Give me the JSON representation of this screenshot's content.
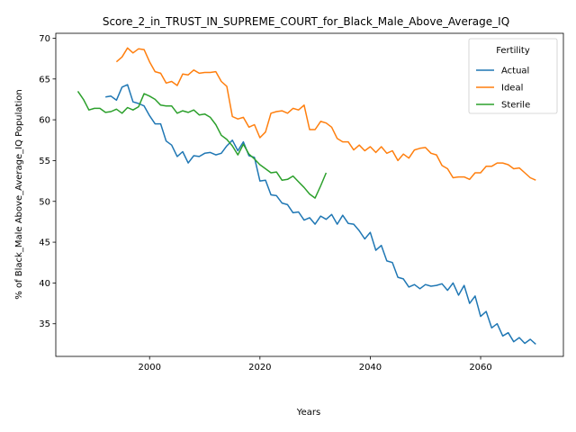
{
  "chart_data": {
    "type": "line",
    "title": "Score_2_in_TRUST_IN_SUPREME_COURT_for_Black_Male_Above_Average_IQ",
    "xlabel": "Years",
    "ylabel": "% of Black_Male Above_Average_IQ Population",
    "xlim": [
      1983,
      2075
    ],
    "ylim": [
      31,
      70.6
    ],
    "xticks": [
      2000,
      2020,
      2040,
      2060
    ],
    "yticks": [
      35,
      40,
      45,
      50,
      55,
      60,
      65,
      70
    ],
    "grid": false,
    "legend": {
      "title": "Fertility",
      "placement": "top-right"
    },
    "series": [
      {
        "name": "Actual",
        "color": "#1f77b4",
        "x": [
          1992,
          1993,
          1994,
          1995,
          1996,
          1997,
          1998,
          1999,
          2000,
          2001,
          2002,
          2003,
          2004,
          2005,
          2006,
          2007,
          2008,
          2009,
          2010,
          2011,
          2012,
          2013,
          2014,
          2015,
          2016,
          2017,
          2018,
          2019,
          2020,
          2021,
          2022,
          2023,
          2024,
          2025,
          2026,
          2027,
          2028,
          2029,
          2030,
          2031,
          2032,
          2033,
          2034,
          2035,
          2036,
          2037,
          2038,
          2039,
          2040,
          2041,
          2042,
          2043,
          2044,
          2045,
          2046,
          2047,
          2048,
          2049,
          2050,
          2051,
          2052,
          2053,
          2054,
          2055,
          2056,
          2057,
          2058,
          2059,
          2060,
          2061,
          2062,
          2063,
          2064,
          2065,
          2066,
          2067,
          2068,
          2069,
          2070
        ],
        "values": [
          62.8,
          62.9,
          62.4,
          64.0,
          64.3,
          62.2,
          62.0,
          61.7,
          60.5,
          59.5,
          59.5,
          57.4,
          56.9,
          55.5,
          56.1,
          54.7,
          55.6,
          55.5,
          55.9,
          56.0,
          55.7,
          55.9,
          56.8,
          57.5,
          56.2,
          57.3,
          55.6,
          55.4,
          52.5,
          52.6,
          50.8,
          50.7,
          49.8,
          49.6,
          48.6,
          48.7,
          47.7,
          48.0,
          47.2,
          48.2,
          47.8,
          48.4,
          47.2,
          48.3,
          47.3,
          47.2,
          46.4,
          45.4,
          46.2,
          44.0,
          44.6,
          42.7,
          42.5,
          40.7,
          40.5,
          39.5,
          39.8,
          39.3,
          39.8,
          39.6,
          39.7,
          39.9,
          39.1,
          40.0,
          38.5,
          39.7,
          37.5,
          38.4,
          35.9,
          36.5,
          34.5,
          35.0,
          33.5,
          33.9,
          32.8,
          33.3,
          32.6,
          33.1,
          32.5
        ]
      },
      {
        "name": "Ideal",
        "color": "#ff7f0e",
        "x": [
          1994,
          1995,
          1996,
          1997,
          1998,
          1999,
          2000,
          2001,
          2002,
          2003,
          2004,
          2005,
          2006,
          2007,
          2008,
          2009,
          2010,
          2011,
          2012,
          2013,
          2014,
          2015,
          2016,
          2017,
          2018,
          2019,
          2020,
          2021,
          2022,
          2023,
          2024,
          2025,
          2026,
          2027,
          2028,
          2029,
          2030,
          2031,
          2032,
          2033,
          2034,
          2035,
          2036,
          2037,
          2038,
          2039,
          2040,
          2041,
          2042,
          2043,
          2044,
          2045,
          2046,
          2047,
          2048,
          2049,
          2050,
          2051,
          2052,
          2053,
          2054,
          2055,
          2056,
          2057,
          2058,
          2059,
          2060,
          2061,
          2062,
          2063,
          2064,
          2065,
          2066,
          2067,
          2068,
          2069,
          2070
        ],
        "values": [
          67.1,
          67.7,
          68.8,
          68.2,
          68.7,
          68.6,
          67.1,
          65.9,
          65.7,
          64.5,
          64.7,
          64.2,
          65.6,
          65.5,
          66.1,
          65.7,
          65.8,
          65.8,
          65.9,
          64.7,
          64.1,
          60.4,
          60.1,
          60.3,
          59.1,
          59.4,
          57.8,
          58.5,
          60.8,
          61.0,
          61.1,
          60.8,
          61.4,
          61.2,
          61.8,
          58.8,
          58.8,
          59.8,
          59.6,
          59.1,
          57.7,
          57.3,
          57.3,
          56.3,
          56.9,
          56.2,
          56.7,
          56.0,
          56.7,
          55.9,
          56.2,
          55.0,
          55.8,
          55.3,
          56.3,
          56.5,
          56.6,
          55.9,
          55.7,
          54.4,
          54.0,
          52.9,
          53.0,
          53.0,
          52.7,
          53.5,
          53.5,
          54.3,
          54.3,
          54.7,
          54.7,
          54.5,
          54.0,
          54.1,
          53.5,
          52.9,
          52.6
        ]
      },
      {
        "name": "Sterile",
        "color": "#2ca02c",
        "x": [
          1987,
          1988,
          1989,
          1990,
          1991,
          1992,
          1993,
          1994,
          1995,
          1996,
          1997,
          1998,
          1999,
          2000,
          2001,
          2002,
          2003,
          2004,
          2005,
          2006,
          2007,
          2008,
          2009,
          2010,
          2011,
          2012,
          2013,
          2014,
          2015,
          2016,
          2017,
          2018,
          2019,
          2020,
          2021,
          2022,
          2023,
          2024,
          2025,
          2026,
          2027,
          2028,
          2029,
          2030,
          2031,
          2032
        ],
        "values": [
          63.5,
          62.5,
          61.2,
          61.4,
          61.4,
          60.9,
          61.0,
          61.3,
          60.8,
          61.5,
          61.2,
          61.6,
          63.2,
          62.9,
          62.5,
          61.8,
          61.7,
          61.7,
          60.8,
          61.1,
          60.9,
          61.2,
          60.6,
          60.7,
          60.3,
          59.4,
          58.1,
          57.6,
          56.8,
          55.7,
          57.0,
          55.8,
          55.2,
          54.5,
          54.0,
          53.5,
          53.6,
          52.6,
          52.7,
          53.1,
          52.4,
          51.7,
          50.9,
          50.4,
          51.9,
          53.5
        ]
      }
    ]
  }
}
